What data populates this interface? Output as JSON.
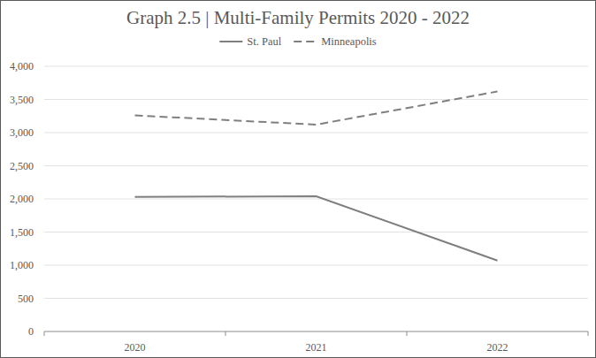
{
  "chart_data": {
    "type": "line",
    "title": "Graph 2.5 | Multi-Family Permits 2020 - 2022",
    "categories": [
      "2020",
      "2021",
      "2022"
    ],
    "series": [
      {
        "name": "St. Paul",
        "color": "#7f7f7f",
        "line_style": "solid",
        "values": [
          2030,
          2040,
          1070
        ]
      },
      {
        "name": "Minneapolis",
        "color": "#7f7f7f",
        "line_style": "dashed",
        "values": [
          3260,
          3120,
          3620
        ]
      }
    ],
    "ylim": [
      0,
      4000
    ],
    "yticks": [
      0,
      500,
      {
        "value": 1000,
        "label": "1,000"
      },
      {
        "value": 1500,
        "label": "1,500"
      },
      {
        "value": 2000,
        "label": "2,000"
      },
      {
        "value": 2500,
        "label": "2,500"
      },
      {
        "value": 3000,
        "label": "3,000"
      },
      {
        "value": 3500,
        "label": "3,500"
      },
      {
        "value": 4000,
        "label": "4,000"
      }
    ],
    "grid": true,
    "legend": "top"
  }
}
